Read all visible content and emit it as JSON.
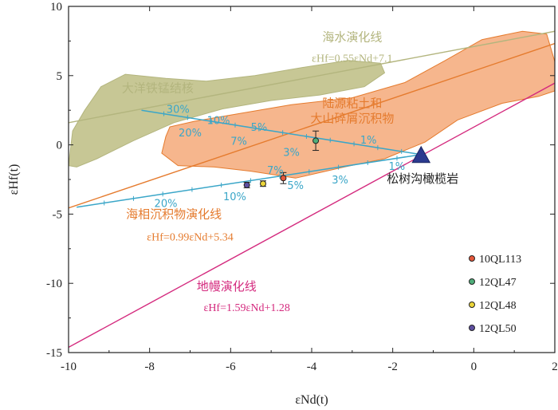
{
  "chart_data": {
    "type": "scatter",
    "xlabel": "εNd(t)",
    "ylabel": "εHf(t)",
    "xlim": [
      -10,
      2
    ],
    "ylim": [
      -15,
      10
    ],
    "x_ticks": [
      "-10",
      "-8",
      "-6",
      "-4",
      "-2",
      "0",
      "2"
    ],
    "y_ticks": [
      "10",
      "5",
      "0",
      "-5",
      "-10",
      "-15"
    ],
    "colors": {
      "seawater": "#b3b57e",
      "marine": "#e57b2e",
      "mantle": "#d42a7e",
      "mixing": "#3aa6c8",
      "nodule_fill": "#c7c795",
      "terrigenous_fill": "#f6b68d",
      "olivine": "#2b3a8f"
    },
    "regions": [
      {
        "name": "大洋铁锰结核",
        "color": "#b3b57e"
      },
      {
        "name": "陆源粘土和\n大山碎屑沉积物",
        "color": "#e57b2e"
      }
    ],
    "lines": [
      {
        "name": "海水演化线",
        "equation": "εHf=0.55εNd+7.1",
        "slope": 0.55,
        "intercept": 7.1,
        "color": "#b3b57e"
      },
      {
        "name": "海相沉积物演化线",
        "equation": "εHf=0.99εNd+5.34",
        "slope": 0.99,
        "intercept": 5.34,
        "color": "#e57b2e"
      },
      {
        "name": "地幔演化线",
        "equation": "εHf=1.59εNd+1.28",
        "slope": 1.59,
        "intercept": 1.28,
        "color": "#d42a7e"
      }
    ],
    "endmember": {
      "name": "松树沟橄榄岩",
      "x": -1.3,
      "y": -0.7
    },
    "mixing_curves": [
      {
        "from": [
          -8.2,
          2.5
        ],
        "to": [
          -1.3,
          -0.7
        ],
        "labels": [
          {
            "text": "30%",
            "x": -7.3,
            "y": 2.3
          },
          {
            "text": "20%",
            "x": -7.0,
            "y": 0.6
          },
          {
            "text": "10%",
            "x": -6.3,
            "y": 1.5
          },
          {
            "text": "7%",
            "x": -5.8,
            "y": 0.0
          },
          {
            "text": "5%",
            "x": -5.3,
            "y": 1.0
          },
          {
            "text": "3%",
            "x": -4.5,
            "y": -0.8
          },
          {
            "text": "1%",
            "x": -2.6,
            "y": 0.1
          }
        ]
      },
      {
        "from": [
          -9.8,
          -4.5
        ],
        "to": [
          -1.3,
          -0.7
        ],
        "labels": [
          {
            "text": "20%",
            "x": -7.6,
            "y": -4.5
          },
          {
            "text": "10%",
            "x": -5.9,
            "y": -4.0
          },
          {
            "text": "7%",
            "x": -4.9,
            "y": -2.1
          },
          {
            "text": "5%",
            "x": -4.4,
            "y": -3.2
          },
          {
            "text": "3%",
            "x": -3.3,
            "y": -2.8
          },
          {
            "text": "1%",
            "x": -1.9,
            "y": -1.8
          }
        ]
      }
    ],
    "series": [
      {
        "name": "10QL113",
        "color": "#e4573b",
        "points": [
          {
            "x": -4.7,
            "y": -2.4,
            "err": 0.4
          }
        ]
      },
      {
        "name": "12QL47",
        "color": "#4fae7a",
        "points": [
          {
            "x": -3.9,
            "y": 0.3,
            "err": 0.7
          }
        ]
      },
      {
        "name": "12QL48",
        "color": "#ebd53a",
        "points": [
          {
            "x": -5.2,
            "y": -2.8,
            "err": 0.2
          }
        ]
      },
      {
        "name": "12QL50",
        "color": "#5e4fa0",
        "points": [
          {
            "x": -5.6,
            "y": -2.9,
            "err": 0.2
          }
        ]
      }
    ],
    "legend_position": "bottom-right"
  }
}
